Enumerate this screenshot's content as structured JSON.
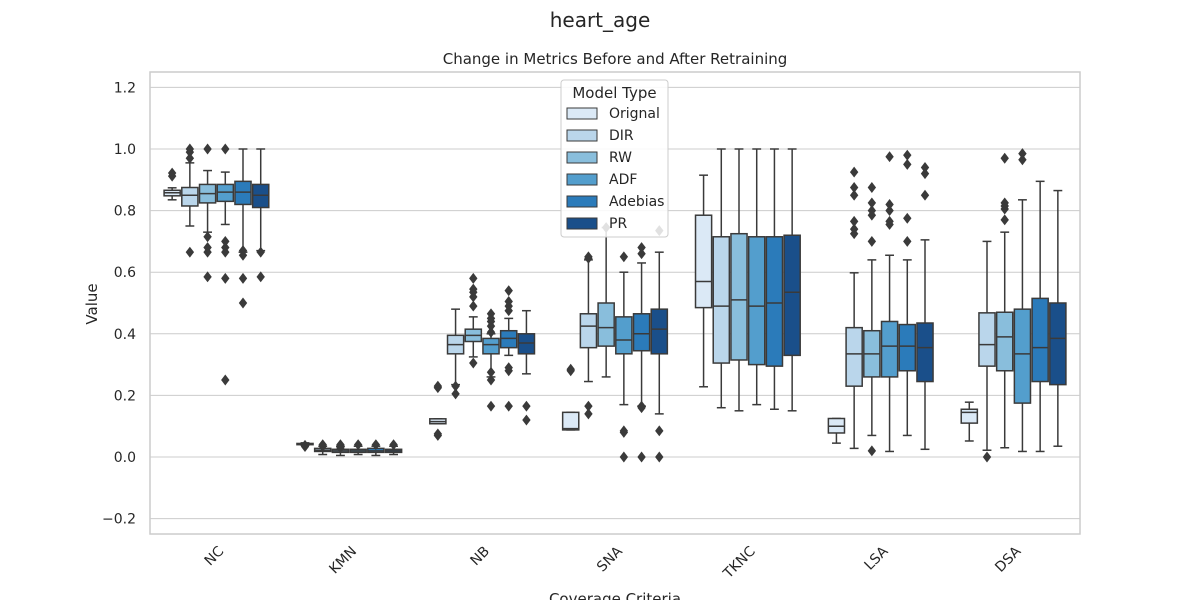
{
  "figure_title": "heart_age",
  "chart_data": {
    "type": "box",
    "title": "Change in Metrics Before and After Retraining",
    "xlabel": "Coverage Criteria",
    "ylabel": "Value",
    "ylim": [
      -0.25,
      1.25
    ],
    "yticks": [
      -0.2,
      0.0,
      0.2,
      0.4,
      0.6,
      0.8,
      1.0,
      1.2
    ],
    "ytick_labels": [
      "−0.2",
      "0.0",
      "0.2",
      "0.4",
      "0.6",
      "0.8",
      "1.0",
      "1.2"
    ],
    "grid": true,
    "legend": {
      "title": "Model Type",
      "placement": "top-center"
    },
    "categories": [
      "NC",
      "KMN",
      "NB",
      "SNA",
      "TKNC",
      "LSA",
      "DSA"
    ],
    "series": [
      {
        "name": "Orignal",
        "color": "#dbe9f6",
        "boxes": [
          {
            "whislo": 0.835,
            "q1": 0.848,
            "med": 0.858,
            "q3": 0.866,
            "whishi": 0.874,
            "fliers": [
              0.912,
              0.922
            ]
          },
          {
            "whislo": 0.038,
            "q1": 0.04,
            "med": 0.042,
            "q3": 0.044,
            "whishi": 0.046,
            "fliers": [
              0.034,
              0.038
            ]
          },
          {
            "whislo": 0.108,
            "q1": 0.108,
            "med": 0.115,
            "q3": 0.124,
            "whishi": 0.124,
            "fliers": [
              0.07,
              0.075,
              0.225,
              0.23
            ]
          },
          {
            "whislo": 0.088,
            "q1": 0.088,
            "med": 0.092,
            "q3": 0.145,
            "whishi": 0.145,
            "fliers": [
              0.28,
              0.285
            ]
          },
          {
            "whislo": 0.228,
            "q1": 0.485,
            "med": 0.57,
            "q3": 0.785,
            "whishi": 0.915,
            "fliers": []
          },
          {
            "whislo": 0.045,
            "q1": 0.078,
            "med": 0.1,
            "q3": 0.125,
            "whishi": 0.125,
            "fliers": []
          },
          {
            "whislo": 0.052,
            "q1": 0.11,
            "med": 0.145,
            "q3": 0.155,
            "whishi": 0.178,
            "fliers": []
          }
        ]
      },
      {
        "name": "DIR",
        "color": "#bad6eb",
        "boxes": [
          {
            "whislo": 0.75,
            "q1": 0.815,
            "med": 0.85,
            "q3": 0.875,
            "whishi": 0.955,
            "fliers": [
              0.665,
              0.99,
              1.0,
              0.97
            ]
          },
          {
            "whislo": 0.008,
            "q1": 0.018,
            "med": 0.022,
            "q3": 0.028,
            "whishi": 0.035,
            "fliers": [
              0.04,
              0.035
            ]
          },
          {
            "whislo": 0.235,
            "q1": 0.335,
            "med": 0.365,
            "q3": 0.395,
            "whishi": 0.48,
            "fliers": [
              0.205,
              0.23
            ]
          },
          {
            "whislo": 0.245,
            "q1": 0.355,
            "med": 0.425,
            "q3": 0.465,
            "whishi": 0.64,
            "fliers": [
              0.14,
              0.165,
              0.645,
              0.65
            ]
          },
          {
            "whislo": 0.16,
            "q1": 0.305,
            "med": 0.49,
            "q3": 0.715,
            "whishi": 1.0,
            "fliers": []
          },
          {
            "whislo": 0.028,
            "q1": 0.23,
            "med": 0.335,
            "q3": 0.42,
            "whishi": 0.598,
            "fliers": [
              0.725,
              0.74,
              0.765,
              0.85,
              0.875,
              0.925
            ]
          },
          {
            "whislo": 0.022,
            "q1": 0.295,
            "med": 0.365,
            "q3": 0.468,
            "whishi": 0.7,
            "fliers": [
              0.0
            ]
          }
        ]
      },
      {
        "name": "RW",
        "color": "#89bedc",
        "boxes": [
          {
            "whislo": 0.73,
            "q1": 0.825,
            "med": 0.855,
            "q3": 0.885,
            "whishi": 0.93,
            "fliers": [
              0.585,
              0.665,
              0.68,
              0.715,
              1.0
            ]
          },
          {
            "whislo": 0.005,
            "q1": 0.015,
            "med": 0.02,
            "q3": 0.025,
            "whishi": 0.035,
            "fliers": [
              0.03,
              0.04
            ]
          },
          {
            "whislo": 0.325,
            "q1": 0.375,
            "med": 0.395,
            "q3": 0.415,
            "whishi": 0.455,
            "fliers": [
              0.305,
              0.49,
              0.52,
              0.535,
              0.545,
              0.58
            ]
          },
          {
            "whislo": 0.26,
            "q1": 0.36,
            "med": 0.42,
            "q3": 0.5,
            "whishi": 0.745,
            "fliers": [
              0.745
            ]
          },
          {
            "whislo": 0.15,
            "q1": 0.315,
            "med": 0.51,
            "q3": 0.725,
            "whishi": 1.0,
            "fliers": []
          },
          {
            "whislo": 0.07,
            "q1": 0.26,
            "med": 0.335,
            "q3": 0.41,
            "whishi": 0.64,
            "fliers": [
              0.02,
              0.7,
              0.785,
              0.8,
              0.825,
              0.875
            ]
          },
          {
            "whislo": 0.03,
            "q1": 0.28,
            "med": 0.39,
            "q3": 0.47,
            "whishi": 0.73,
            "fliers": [
              0.77,
              0.805,
              0.815,
              0.825,
              0.97
            ]
          }
        ]
      },
      {
        "name": "ADF",
        "color": "#539ecd",
        "boxes": [
          {
            "whislo": 0.755,
            "q1": 0.83,
            "med": 0.86,
            "q3": 0.885,
            "whishi": 0.925,
            "fliers": [
              0.58,
              0.665,
              0.68,
              0.7,
              0.25,
              1.0
            ]
          },
          {
            "whislo": 0.008,
            "q1": 0.015,
            "med": 0.02,
            "q3": 0.025,
            "whishi": 0.035,
            "fliers": [
              0.04
            ]
          },
          {
            "whislo": 0.26,
            "q1": 0.335,
            "med": 0.365,
            "q3": 0.385,
            "whishi": 0.4,
            "fliers": [
              0.165,
              0.25,
              0.275,
              0.405,
              0.425,
              0.44,
              0.45,
              0.465
            ]
          },
          {
            "whislo": 0.17,
            "q1": 0.335,
            "med": 0.38,
            "q3": 0.455,
            "whishi": 0.6,
            "fliers": [
              0.0,
              0.08,
              0.085,
              0.65
            ]
          },
          {
            "whislo": 0.17,
            "q1": 0.3,
            "med": 0.49,
            "q3": 0.715,
            "whishi": 1.0,
            "fliers": []
          },
          {
            "whislo": 0.018,
            "q1": 0.26,
            "med": 0.36,
            "q3": 0.44,
            "whishi": 0.655,
            "fliers": [
              0.755,
              0.765,
              0.8,
              0.82,
              0.975
            ]
          },
          {
            "whislo": 0.018,
            "q1": 0.175,
            "med": 0.335,
            "q3": 0.48,
            "whishi": 0.835,
            "fliers": [
              0.965,
              0.985
            ]
          }
        ]
      },
      {
        "name": "Adebias",
        "color": "#2b7bba",
        "boxes": [
          {
            "whislo": 0.665,
            "q1": 0.82,
            "med": 0.86,
            "q3": 0.895,
            "whishi": 1.0,
            "fliers": [
              0.5,
              0.58,
              0.655,
              0.67
            ]
          },
          {
            "whislo": 0.005,
            "q1": 0.015,
            "med": 0.02,
            "q3": 0.028,
            "whishi": 0.035,
            "fliers": [
              0.04
            ]
          },
          {
            "whislo": 0.33,
            "q1": 0.355,
            "med": 0.385,
            "q3": 0.41,
            "whishi": 0.45,
            "fliers": [
              0.165,
              0.28,
              0.29,
              0.475,
              0.49,
              0.505,
              0.54
            ]
          },
          {
            "whislo": 0.165,
            "q1": 0.345,
            "med": 0.4,
            "q3": 0.465,
            "whishi": 0.63,
            "fliers": [
              0.0,
              0.16,
              0.165,
              0.66,
              0.68
            ]
          },
          {
            "whislo": 0.155,
            "q1": 0.295,
            "med": 0.5,
            "q3": 0.715,
            "whishi": 1.0,
            "fliers": []
          },
          {
            "whislo": 0.07,
            "q1": 0.28,
            "med": 0.36,
            "q3": 0.43,
            "whishi": 0.64,
            "fliers": [
              0.7,
              0.775,
              0.95,
              0.98
            ]
          },
          {
            "whislo": 0.018,
            "q1": 0.245,
            "med": 0.355,
            "q3": 0.515,
            "whishi": 0.895,
            "fliers": []
          }
        ]
      },
      {
        "name": "PR",
        "color": "#1a4f8a",
        "boxes": [
          {
            "whislo": 0.67,
            "q1": 0.81,
            "med": 0.85,
            "q3": 0.885,
            "whishi": 1.0,
            "fliers": [
              0.585,
              0.665
            ]
          },
          {
            "whislo": 0.008,
            "q1": 0.015,
            "med": 0.02,
            "q3": 0.025,
            "whishi": 0.035,
            "fliers": [
              0.04
            ]
          },
          {
            "whislo": 0.27,
            "q1": 0.335,
            "med": 0.37,
            "q3": 0.4,
            "whishi": 0.475,
            "fliers": [
              0.12,
              0.165
            ]
          },
          {
            "whislo": 0.14,
            "q1": 0.335,
            "med": 0.415,
            "q3": 0.48,
            "whishi": 0.665,
            "fliers": [
              0.0,
              0.085,
              0.735
            ]
          },
          {
            "whislo": 0.15,
            "q1": 0.33,
            "med": 0.535,
            "q3": 0.72,
            "whishi": 1.0,
            "fliers": []
          },
          {
            "whislo": 0.025,
            "q1": 0.245,
            "med": 0.355,
            "q3": 0.435,
            "whishi": 0.705,
            "fliers": [
              0.85,
              0.92,
              0.94
            ]
          },
          {
            "whislo": 0.035,
            "q1": 0.235,
            "med": 0.385,
            "q3": 0.5,
            "whishi": 0.865,
            "fliers": []
          }
        ]
      }
    ]
  }
}
